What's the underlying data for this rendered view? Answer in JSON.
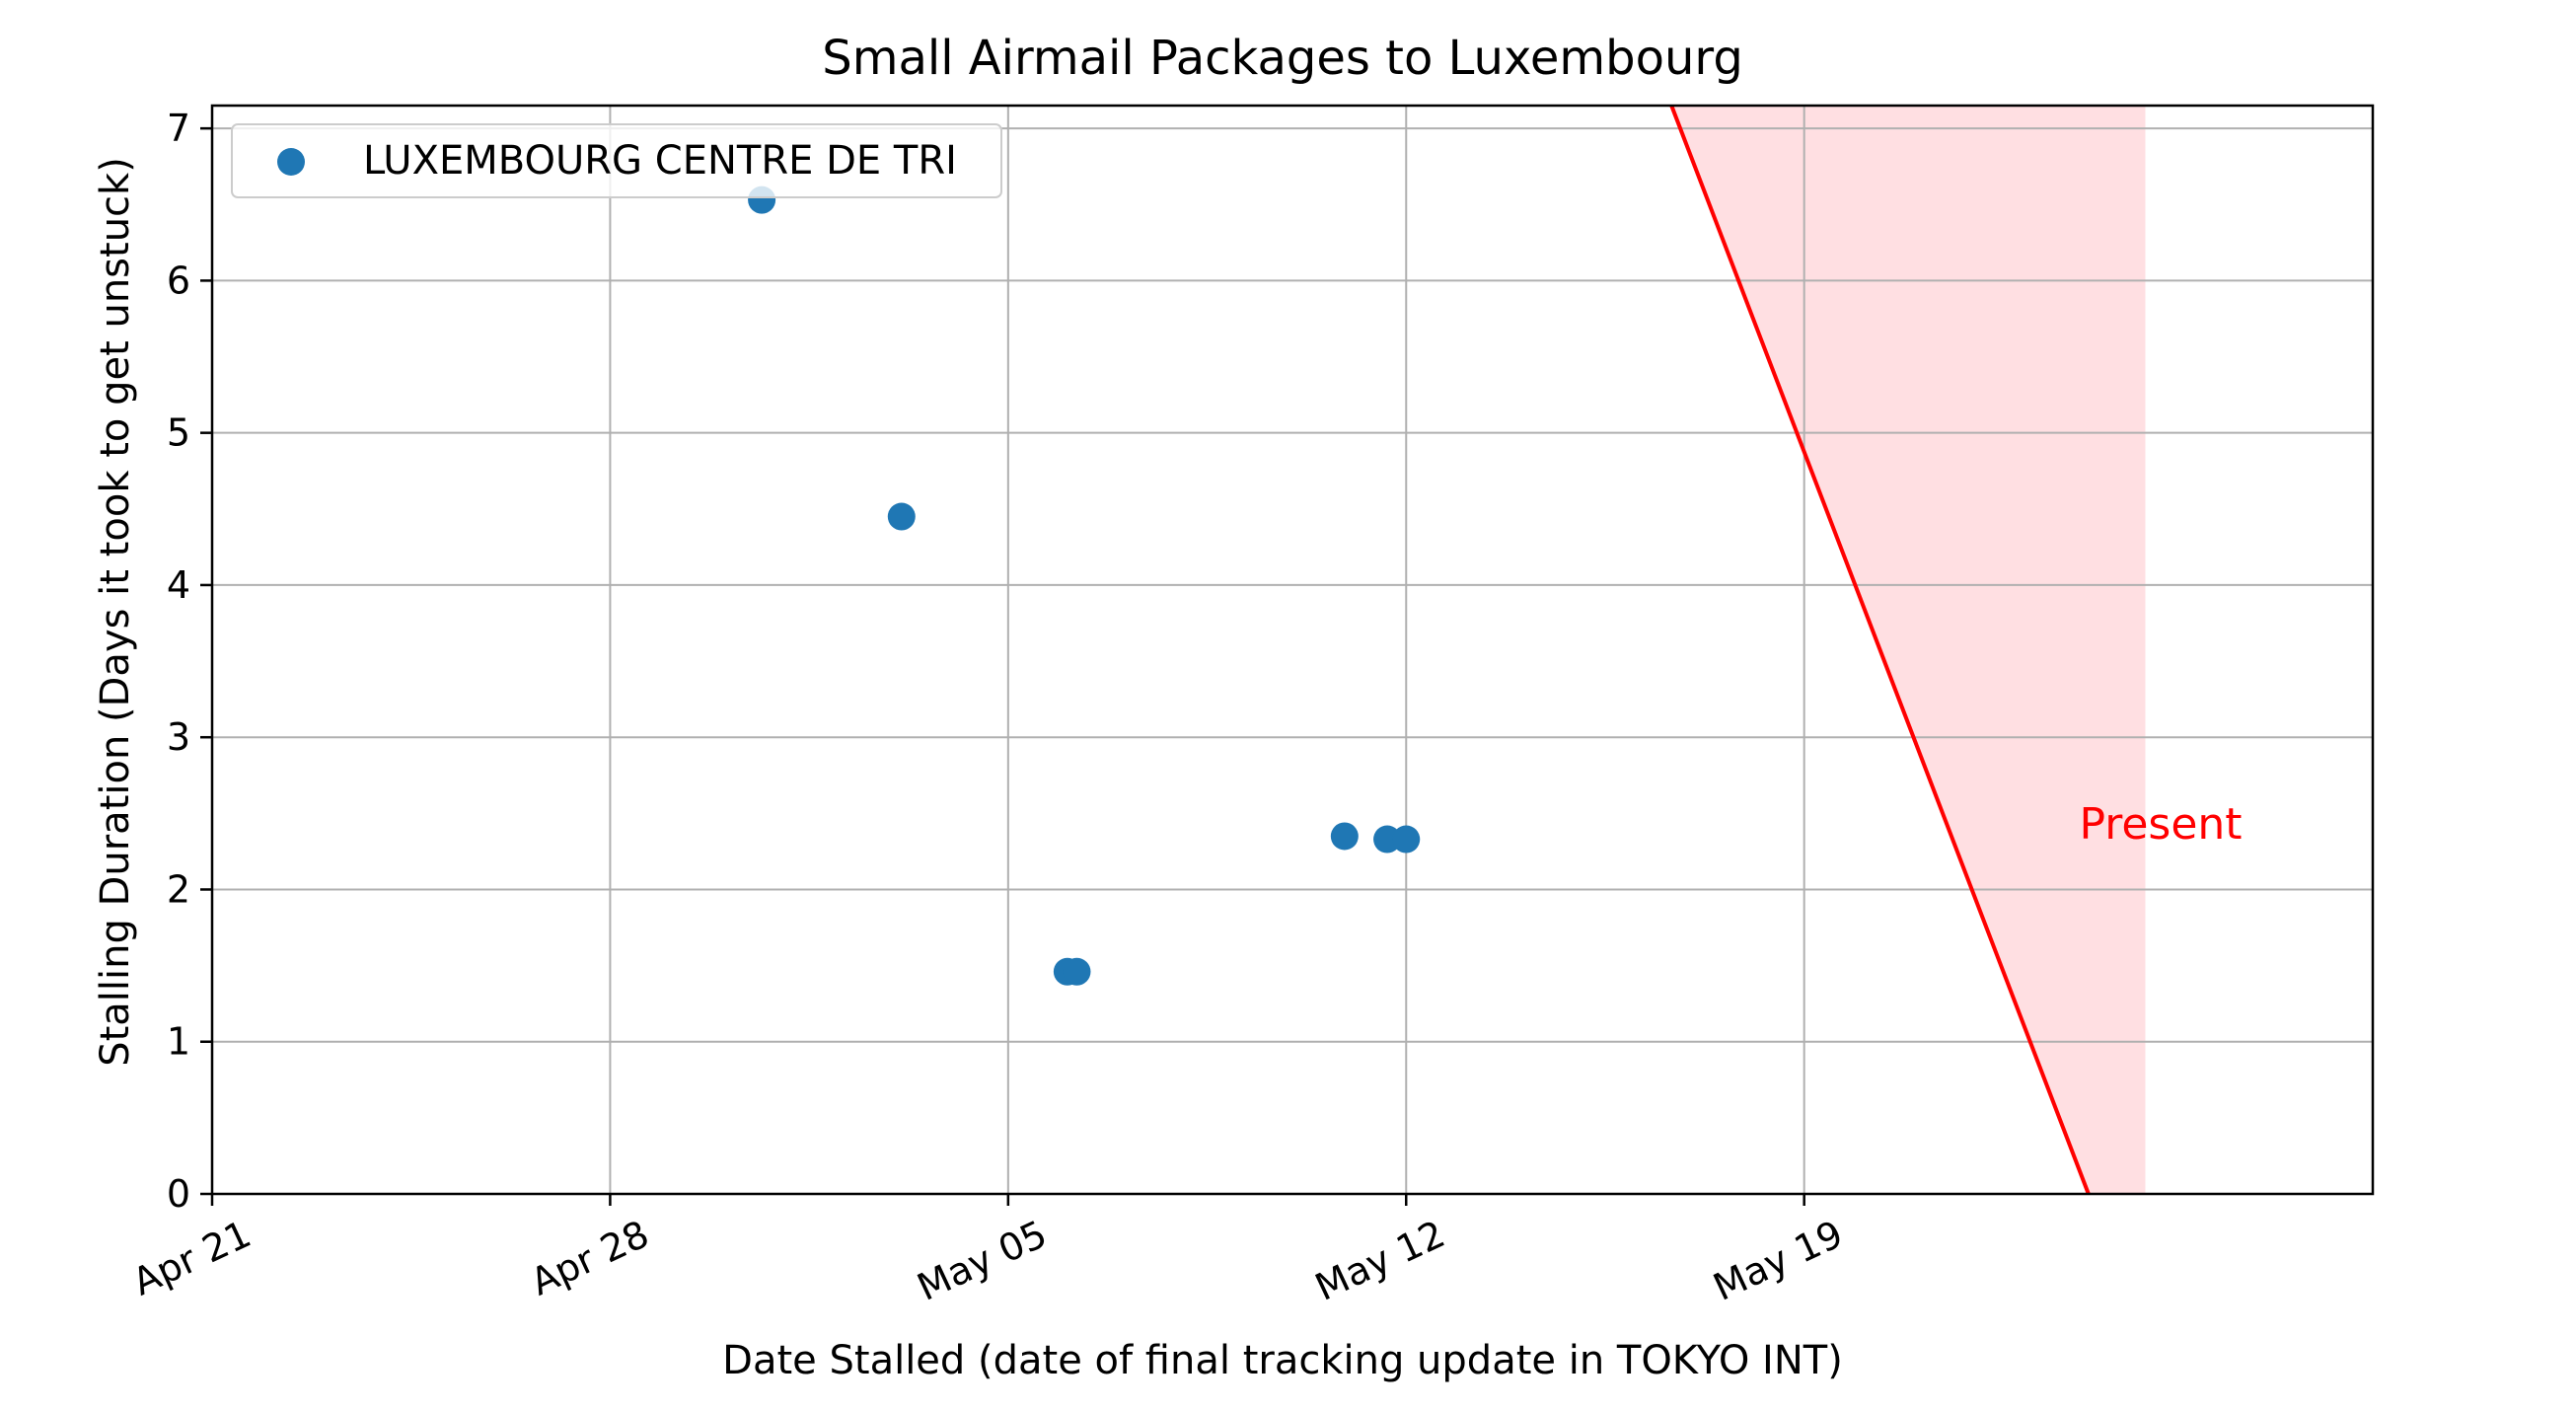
{
  "chart_data": {
    "type": "scatter",
    "title": "Small Airmail Packages to Luxembourg",
    "xlabel": "Date Stalled (date of final tracking update in TOKYO INT)",
    "ylabel": "Stalling Duration (Days it took to get unstuck)",
    "x_axis_type": "date",
    "xlim": [
      "2024-04-21",
      "2024-05-29"
    ],
    "ylim": [
      0,
      7.15
    ],
    "x_ticks": [
      {
        "date": "2024-04-21",
        "label": "Apr 21"
      },
      {
        "date": "2024-04-28",
        "label": "Apr 28"
      },
      {
        "date": "2024-05-05",
        "label": "May 05"
      },
      {
        "date": "2024-05-12",
        "label": "May 12"
      },
      {
        "date": "2024-05-19",
        "label": "May 19"
      }
    ],
    "y_ticks": [
      0,
      1,
      2,
      3,
      4,
      5,
      6,
      7
    ],
    "grid": true,
    "legend_position": "top-left",
    "series": [
      {
        "name": "LUXEMBOURG CENTRE DE TRI",
        "color": "#1f77b4",
        "points": [
          {
            "x": "2024-04-30T16:00",
            "y": 6.53
          },
          {
            "x": "2024-05-03T03:00",
            "y": 4.45
          },
          {
            "x": "2024-05-06T01:00",
            "y": 1.46
          },
          {
            "x": "2024-05-06T05:00",
            "y": 1.46
          },
          {
            "x": "2024-05-10T22:00",
            "y": 2.35
          },
          {
            "x": "2024-05-11T16:00",
            "y": 2.33
          },
          {
            "x": "2024-05-12T00:00",
            "y": 2.33
          }
        ]
      }
    ],
    "present_line": {
      "label": "Present",
      "color": "#ff0000",
      "fill_color": "#ffdfe2",
      "start": {
        "x": "2024-05-16T16:00",
        "y": 7.15
      },
      "end": {
        "x": "2024-05-24T00:00",
        "y": 0
      },
      "shade_until": "2024-05-25T00:00"
    }
  }
}
